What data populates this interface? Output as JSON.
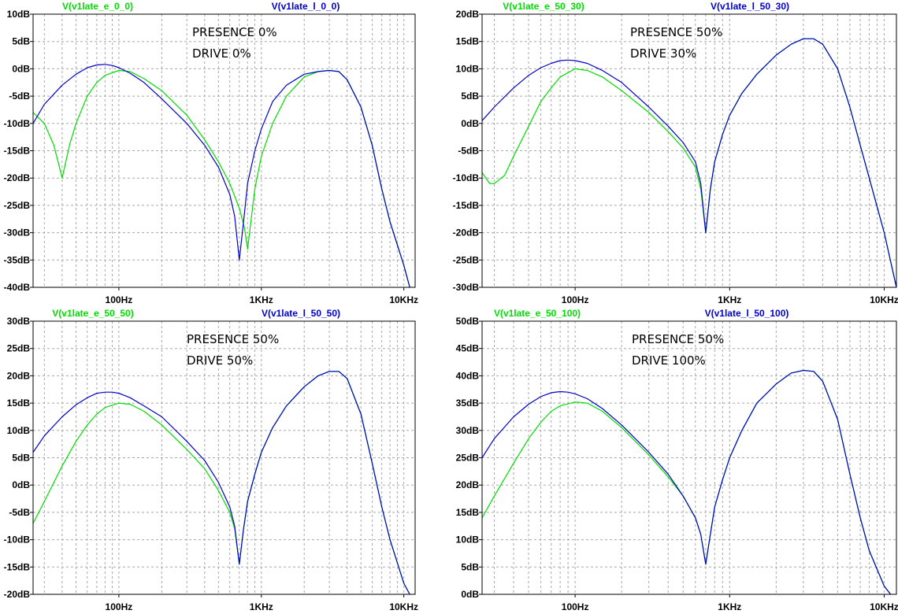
{
  "chart_data": [
    {
      "type": "line",
      "x_scale": "log",
      "xlim": [
        25,
        12000
      ],
      "ylim": [
        -40,
        10
      ],
      "ytick_values": [
        10,
        5,
        0,
        -5,
        -10,
        -15,
        -20,
        -25,
        -30,
        -35,
        -40
      ],
      "ytick_labels": [
        "10dB",
        "5dB",
        "0dB",
        "-5dB",
        "-10dB",
        "-15dB",
        "-20dB",
        "-25dB",
        "-30dB",
        "-35dB",
        "-40dB"
      ],
      "xtick_values": [
        100,
        1000,
        10000
      ],
      "xtick_labels": [
        "100Hz",
        "1KHz",
        "10KHz"
      ],
      "grid": true,
      "annotations": [
        "PRESENCE 0%",
        "DRIVE 0%"
      ],
      "series": [
        {
          "name": "V(v1late_e_0_0)",
          "color": "#00dd00",
          "x": [
            25,
            30,
            35,
            40,
            45,
            50,
            60,
            70,
            80,
            100,
            120,
            150,
            200,
            300,
            400,
            500,
            600,
            700,
            760,
            800,
            900,
            1000,
            1200,
            1500,
            2000,
            2500,
            3000,
            3500,
            4000,
            5000,
            6000,
            7000,
            8000,
            10000,
            11000
          ],
          "y": [
            -8,
            -10,
            -14,
            -20,
            -14,
            -10,
            -5,
            -2.5,
            -1.2,
            -0.3,
            -0.5,
            -1.8,
            -4,
            -8.5,
            -13,
            -17,
            -21,
            -25.5,
            -29,
            -33,
            -22,
            -16,
            -10,
            -5,
            -1.5,
            -0.5,
            -0.3,
            -0.5,
            -2,
            -7,
            -14,
            -22,
            -28,
            -36,
            -40
          ]
        },
        {
          "name": "V(v1late_l_0_0)",
          "color": "#0000cc",
          "x": [
            25,
            30,
            40,
            50,
            60,
            70,
            80,
            90,
            100,
            120,
            150,
            200,
            300,
            400,
            500,
            600,
            650,
            700,
            750,
            800,
            900,
            1000,
            1200,
            1500,
            2000,
            2500,
            3000,
            3500,
            4000,
            5000,
            6000,
            7000,
            8000,
            10000,
            11000
          ],
          "y": [
            -10,
            -6.5,
            -3,
            -1,
            0.2,
            0.7,
            0.8,
            0.6,
            0.2,
            -0.8,
            -2.5,
            -5.5,
            -10,
            -14,
            -18,
            -23,
            -27,
            -35,
            -28,
            -21,
            -15,
            -11,
            -6,
            -3,
            -1,
            -0.5,
            -0.3,
            -0.5,
            -2,
            -7,
            -14,
            -22,
            -28,
            -36,
            -40
          ]
        }
      ]
    },
    {
      "type": "line",
      "x_scale": "log",
      "xlim": [
        25,
        12000
      ],
      "ylim": [
        -30,
        20
      ],
      "ytick_values": [
        20,
        15,
        10,
        5,
        0,
        -5,
        -10,
        -15,
        -20,
        -25,
        -30
      ],
      "ytick_labels": [
        "20dB",
        "15dB",
        "10dB",
        "5dB",
        "0dB",
        "-5dB",
        "-10dB",
        "-15dB",
        "-20dB",
        "-25dB",
        "-30dB"
      ],
      "xtick_values": [
        100,
        1000,
        10000
      ],
      "xtick_labels": [
        "100Hz",
        "1KHz",
        "10KHz"
      ],
      "grid": true,
      "annotations": [
        "PRESENCE 50%",
        "DRIVE 30%"
      ],
      "series": [
        {
          "name": "V(v1late_e_50_30)",
          "color": "#00dd00",
          "x": [
            25,
            28,
            30,
            35,
            40,
            50,
            60,
            70,
            80,
            100,
            120,
            150,
            200,
            300,
            400,
            500,
            600,
            650,
            700,
            750,
            800,
            900,
            1000,
            1200,
            1500,
            2000,
            2500,
            3000,
            3500,
            4000,
            5000,
            6000,
            7000,
            8000,
            10000,
            12000
          ],
          "y": [
            -9,
            -11,
            -11,
            -9.5,
            -6,
            -0.5,
            4,
            6.5,
            8.5,
            10,
            9.7,
            8.5,
            6,
            2,
            -1.5,
            -4.5,
            -8,
            -12,
            -20,
            -12,
            -7,
            -2,
            1.5,
            5.5,
            9,
            12.5,
            14.5,
            15.5,
            15.5,
            14.5,
            10,
            3,
            -4,
            -10,
            -20,
            -30
          ]
        },
        {
          "name": "V(v1late_l_50_30)",
          "color": "#0000cc",
          "x": [
            25,
            30,
            40,
            50,
            60,
            70,
            80,
            90,
            100,
            120,
            150,
            200,
            300,
            400,
            500,
            600,
            650,
            700,
            750,
            800,
            900,
            1000,
            1200,
            1500,
            2000,
            2500,
            3000,
            3500,
            4000,
            5000,
            6000,
            7000,
            8000,
            10000,
            12000
          ],
          "y": [
            0.5,
            3,
            6.5,
            8.8,
            10.2,
            11,
            11.5,
            11.6,
            11.5,
            11,
            9.7,
            7.5,
            3,
            -0.5,
            -3.5,
            -7,
            -11,
            -20,
            -12,
            -7,
            -2,
            1.5,
            5.5,
            9,
            12.5,
            14.5,
            15.5,
            15.5,
            14.5,
            10,
            3,
            -4,
            -10,
            -20,
            -30
          ]
        }
      ]
    },
    {
      "type": "line",
      "x_scale": "log",
      "xlim": [
        25,
        12000
      ],
      "ylim": [
        -20,
        30
      ],
      "ytick_values": [
        30,
        25,
        20,
        15,
        10,
        5,
        0,
        -5,
        -10,
        -15,
        -20
      ],
      "ytick_labels": [
        "30dB",
        "25dB",
        "20dB",
        "15dB",
        "10dB",
        "5dB",
        "0dB",
        "-5dB",
        "-10dB",
        "-15dB",
        "-20dB"
      ],
      "xtick_values": [
        100,
        1000,
        10000
      ],
      "xtick_labels": [
        "100Hz",
        "1KHz",
        "10KHz"
      ],
      "grid": true,
      "annotations": [
        "PRESENCE 50%",
        "DRIVE 50%"
      ],
      "series": [
        {
          "name": "V(v1late_e_50_50)",
          "color": "#00dd00",
          "x": [
            25,
            30,
            40,
            50,
            60,
            70,
            80,
            100,
            120,
            150,
            200,
            300,
            400,
            500,
            600,
            650,
            700,
            750,
            800,
            900,
            1000,
            1200,
            1500,
            2000,
            2500,
            3000,
            3500,
            4000,
            5000,
            6000,
            7000,
            8000,
            10000,
            11000
          ],
          "y": [
            -7,
            -3,
            3.5,
            8,
            11,
            13,
            14.2,
            15,
            14.8,
            13.5,
            11,
            6.5,
            3,
            -1,
            -5,
            -8,
            -14.5,
            -8,
            -3,
            2,
            6,
            10.5,
            14.5,
            18,
            20,
            20.8,
            20.8,
            19.5,
            13,
            4,
            -4,
            -10,
            -18,
            -20
          ]
        },
        {
          "name": "V(v1late_l_50_50)",
          "color": "#0000cc",
          "x": [
            25,
            30,
            40,
            50,
            60,
            70,
            80,
            90,
            100,
            120,
            150,
            200,
            300,
            400,
            500,
            600,
            650,
            700,
            750,
            800,
            900,
            1000,
            1200,
            1500,
            2000,
            2500,
            3000,
            3500,
            4000,
            5000,
            6000,
            7000,
            8000,
            10000,
            11000
          ],
          "y": [
            6,
            9,
            12.5,
            14.7,
            16,
            16.8,
            17,
            17,
            16.8,
            16,
            14.5,
            12.5,
            8,
            4.5,
            0.5,
            -4,
            -7.5,
            -14.5,
            -8,
            -3,
            2,
            6,
            10.5,
            14.5,
            18,
            20,
            20.8,
            20.8,
            19.5,
            13,
            4,
            -4,
            -10,
            -18,
            -20
          ]
        }
      ]
    },
    {
      "type": "line",
      "x_scale": "log",
      "xlim": [
        25,
        12000
      ],
      "ylim": [
        0,
        50
      ],
      "ytick_values": [
        50,
        45,
        40,
        35,
        30,
        25,
        20,
        15,
        10,
        5,
        0
      ],
      "ytick_labels": [
        "50dB",
        "45dB",
        "40dB",
        "35dB",
        "30dB",
        "25dB",
        "20dB",
        "15dB",
        "10dB",
        "5dB",
        "0dB"
      ],
      "xtick_values": [
        100,
        1000,
        10000
      ],
      "xtick_labels": [
        "100Hz",
        "1KHz",
        "10KHz"
      ],
      "grid": true,
      "annotations": [
        "PRESENCE 50%",
        "DRIVE 100%"
      ],
      "series": [
        {
          "name": "V(v1late_e_50_100)",
          "color": "#00dd00",
          "x": [
            25,
            30,
            40,
            50,
            60,
            70,
            80,
            100,
            120,
            150,
            200,
            300,
            400,
            500,
            600,
            650,
            700,
            750,
            800,
            900,
            1000,
            1200,
            1500,
            2000,
            2500,
            3000,
            3500,
            4000,
            5000,
            6000,
            7000,
            8000,
            10000,
            11000
          ],
          "y": [
            14,
            18,
            24,
            28.5,
            31.5,
            33.5,
            34.5,
            35.2,
            35,
            33.5,
            30.5,
            25.5,
            21.5,
            18,
            14,
            11,
            5.5,
            11,
            16,
            21,
            25,
            30,
            35,
            38.5,
            40.5,
            41,
            40.8,
            39,
            32,
            22,
            14,
            8,
            1.5,
            0
          ]
        },
        {
          "name": "V(v1late_l_50_100)",
          "color": "#0000cc",
          "x": [
            25,
            30,
            40,
            50,
            60,
            70,
            80,
            90,
            100,
            120,
            150,
            200,
            300,
            400,
            500,
            600,
            650,
            700,
            750,
            800,
            900,
            1000,
            1200,
            1500,
            2000,
            2500,
            3000,
            3500,
            4000,
            5000,
            6000,
            7000,
            8000,
            10000,
            11000
          ],
          "y": [
            25,
            28.5,
            32.5,
            34.8,
            36.2,
            36.9,
            37.1,
            37,
            36.7,
            35.8,
            34,
            31,
            26,
            22,
            18,
            14,
            11,
            5.5,
            11,
            16,
            21,
            25,
            30,
            35,
            38.5,
            40.5,
            41,
            40.8,
            39,
            32,
            22,
            14,
            8,
            1.5,
            0
          ]
        }
      ]
    }
  ]
}
